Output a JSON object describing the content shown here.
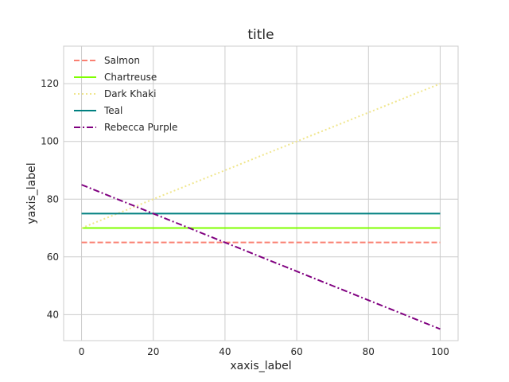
{
  "chart_data": {
    "type": "line",
    "title": "title",
    "xlabel": "xaxis_label",
    "ylabel": "yaxis_label",
    "xlim": [
      -5,
      105
    ],
    "ylim": [
      31,
      133
    ],
    "xticks": [
      0,
      20,
      40,
      60,
      80,
      100
    ],
    "yticks": [
      40,
      60,
      80,
      100,
      120
    ],
    "grid": true,
    "legend_position": "top-left",
    "series": [
      {
        "name": "Salmon",
        "color": "#FA8072",
        "style": "dashed",
        "x": [
          0,
          100
        ],
        "y": [
          65,
          65
        ]
      },
      {
        "name": "Chartreuse",
        "color": "#7FFF00",
        "style": "solid",
        "x": [
          0,
          100
        ],
        "y": [
          70,
          70
        ]
      },
      {
        "name": "Dark Khaki",
        "color": "#F0E68C",
        "style": "dotted",
        "x": [
          0,
          100
        ],
        "y": [
          70,
          120
        ]
      },
      {
        "name": "Teal",
        "color": "#008080",
        "style": "solid",
        "x": [
          0,
          100
        ],
        "y": [
          75,
          75
        ]
      },
      {
        "name": "Rebecca Purple",
        "color": "#800080",
        "style": "dashdot",
        "x": [
          0,
          100
        ],
        "y": [
          85,
          35
        ]
      }
    ]
  }
}
